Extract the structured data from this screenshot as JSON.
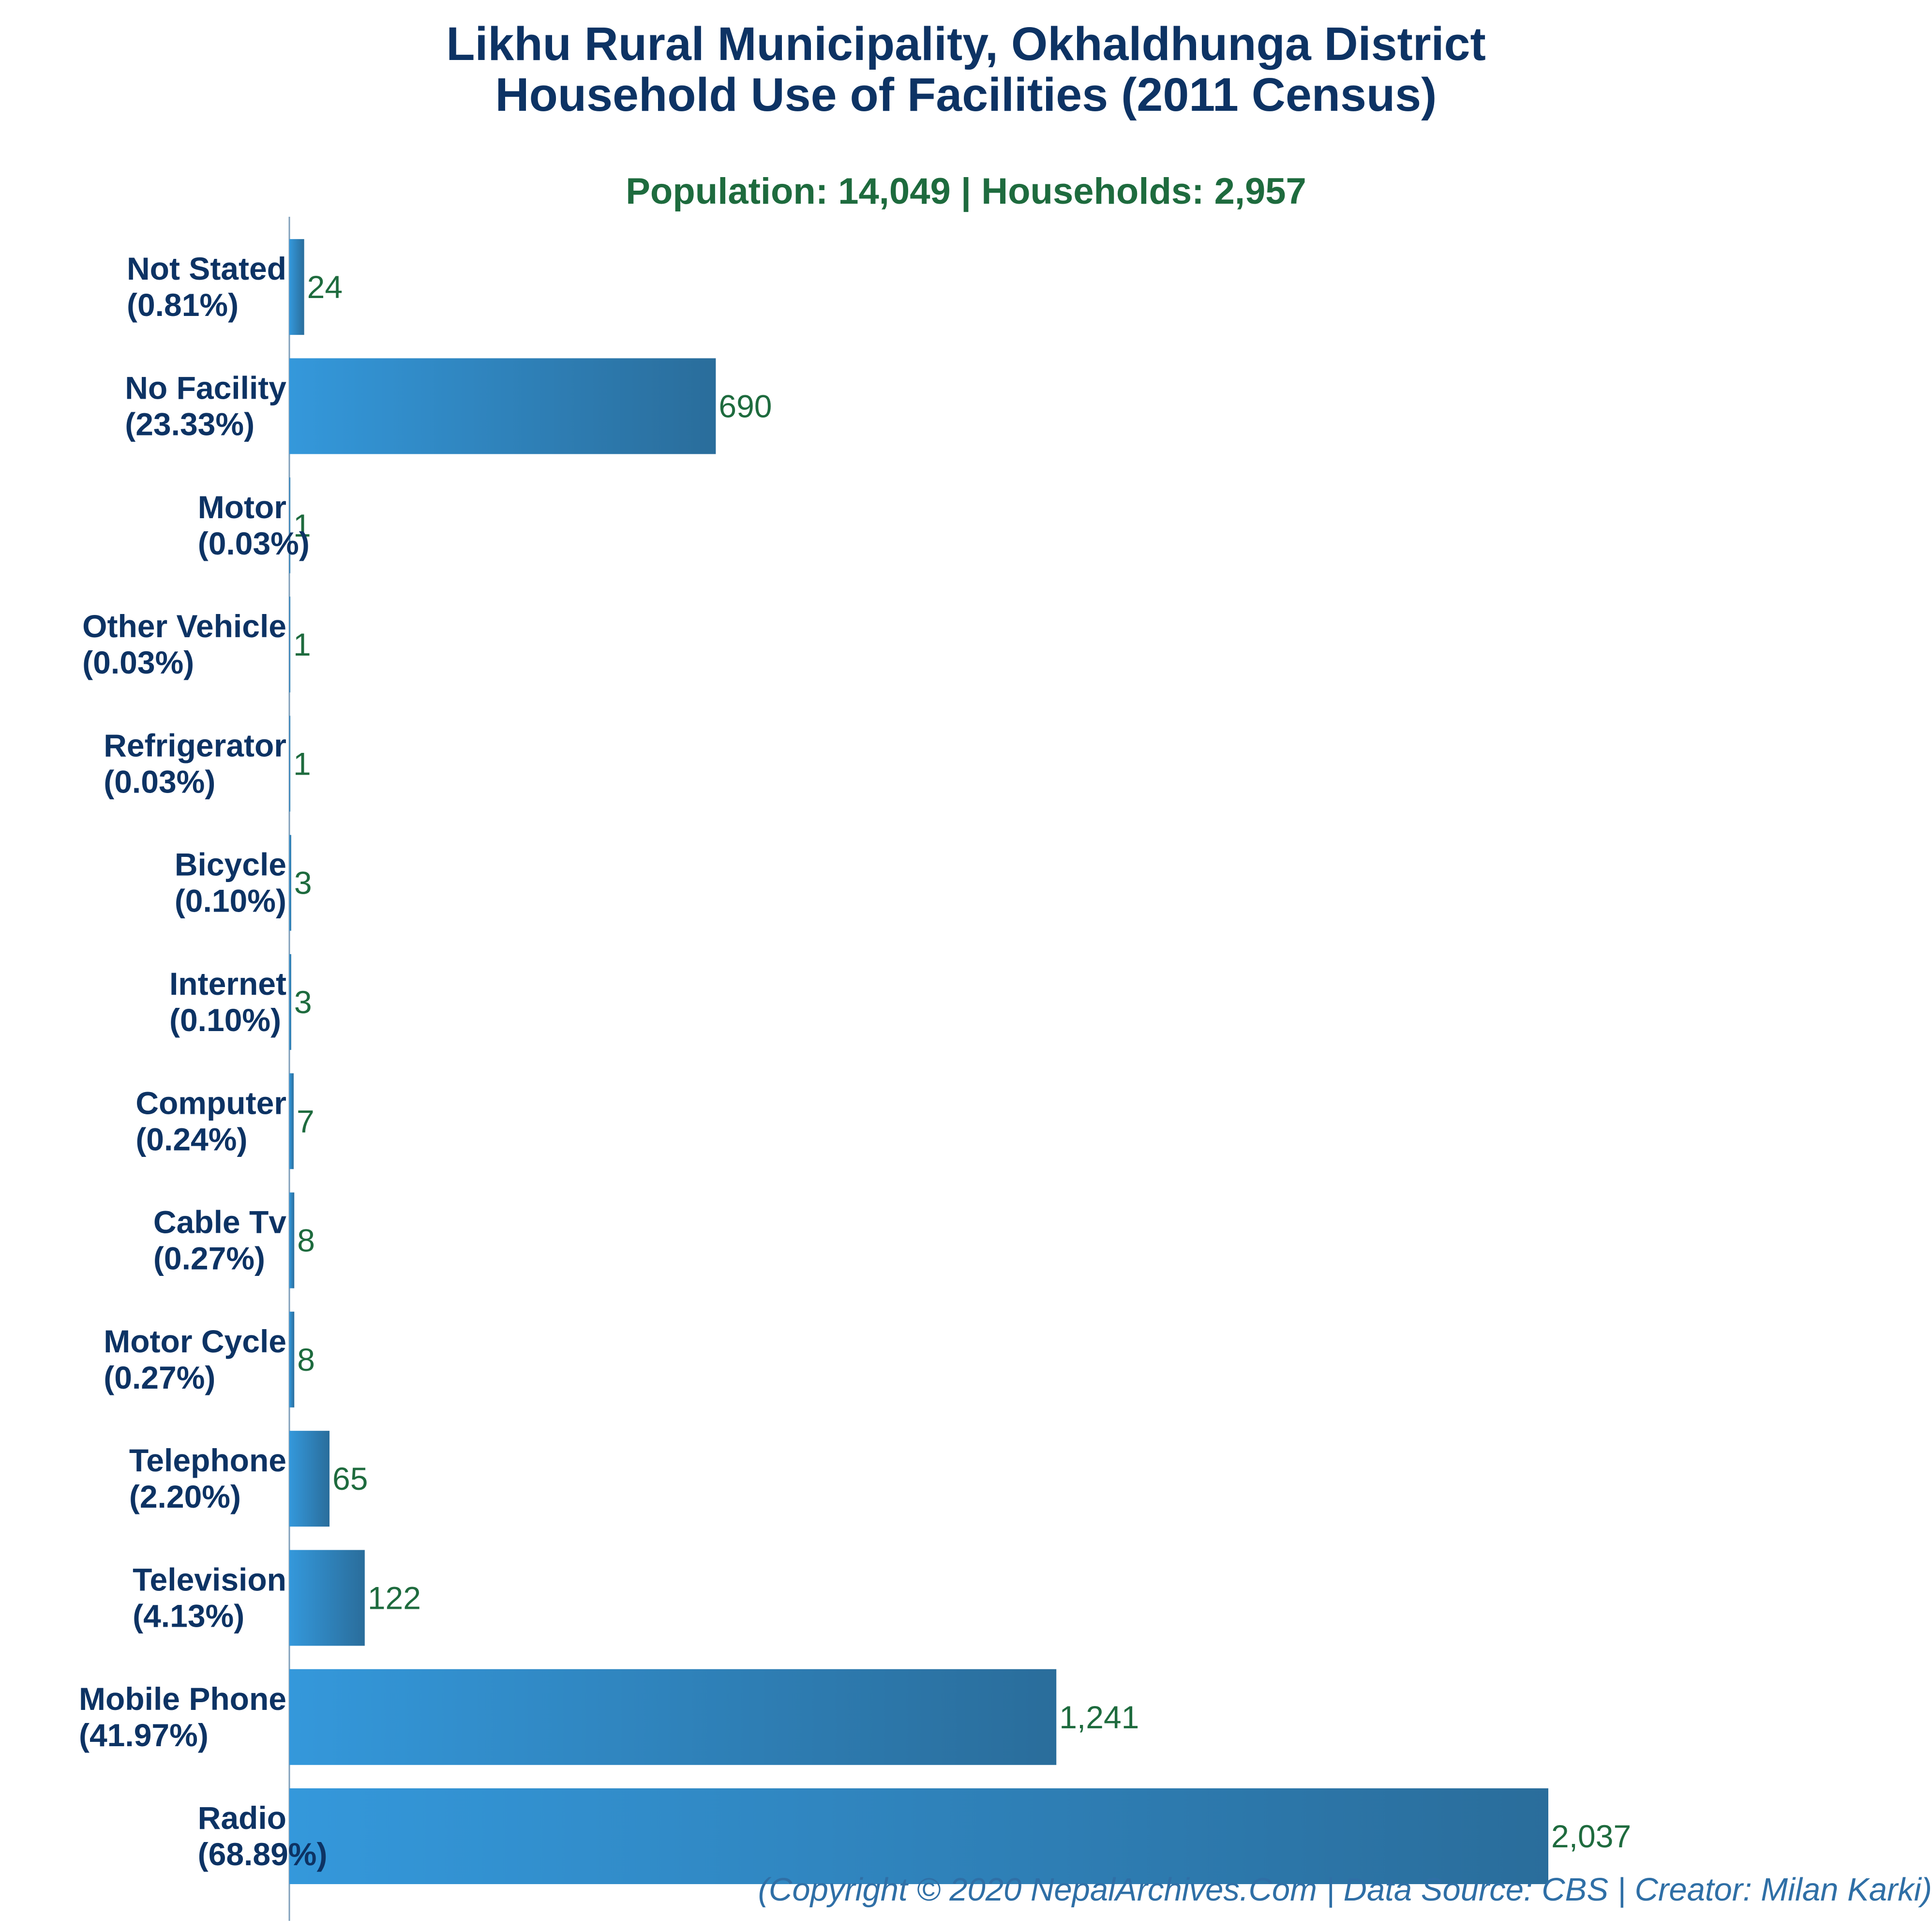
{
  "title_line_1": "Likhu Rural Municipality, Okhaldhunga District",
  "title_line_2": "Household Use of Facilities (2011 Census)",
  "subtitle": "Population: 14,049 | Households: 2,957",
  "footer": "(Copyright © 2020 NepalArchives.Com | Data Source: CBS | Creator: Milan Karki)",
  "colors": {
    "bar_light": "#3498db",
    "bar_dark": "#2a6d9b",
    "title": "#0d3364",
    "value_text": "#1e6b3e",
    "footer_text": "#2f6fa6"
  },
  "chart_data": {
    "type": "bar",
    "orientation": "horizontal",
    "title": "Likhu Rural Municipality, Okhaldhunga District Household Use of Facilities (2011 Census)",
    "subtitle": "Population: 14,049 | Households: 2,957",
    "categories": [
      "Not Stated",
      "No Facility",
      "Motor",
      "Other Vehicle",
      "Refrigerator",
      "Bicycle",
      "Internet",
      "Computer",
      "Cable Tv",
      "Motor Cycle",
      "Telephone",
      "Television",
      "Mobile Phone",
      "Radio"
    ],
    "percent_labels": [
      "(0.81%)",
      "(23.33%)",
      "(0.03%)",
      "(0.03%)",
      "(0.03%)",
      "(0.10%)",
      "(0.10%)",
      "(0.24%)",
      "(0.27%)",
      "(0.27%)",
      "(2.20%)",
      "(4.13%)",
      "(41.97%)",
      "(68.89%)"
    ],
    "values": [
      24,
      690,
      1,
      1,
      1,
      3,
      3,
      7,
      8,
      8,
      65,
      122,
      1241,
      2037
    ],
    "value_labels": [
      "24",
      "690",
      "1",
      "1",
      "1",
      "3",
      "3",
      "7",
      "8",
      "8",
      "65",
      "122",
      "1,241",
      "2,037"
    ],
    "xlim": [
      0,
      2037
    ],
    "grid": false,
    "legend": "none"
  }
}
